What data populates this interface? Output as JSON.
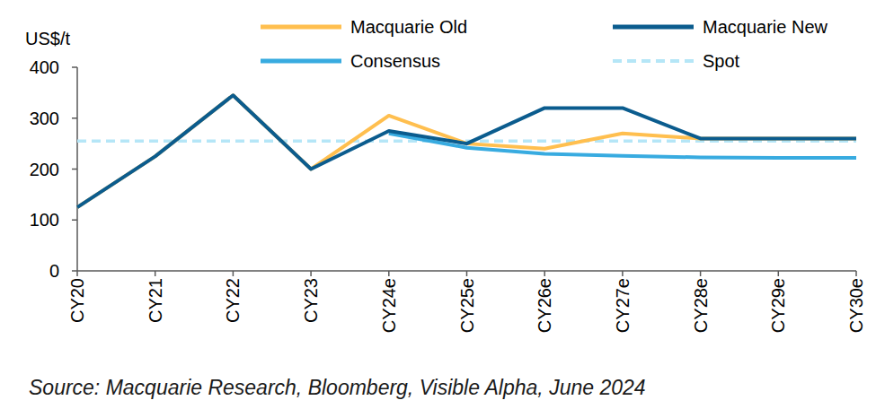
{
  "chart_data": {
    "type": "line",
    "y_axis_label": "US$/t",
    "source": "Source: Macquarie Research, Bloomberg, Visible Alpha, June 2024",
    "categories": [
      "CY20",
      "CY21",
      "CY22",
      "CY23",
      "CY24e",
      "CY25e",
      "CY26e",
      "CY27e",
      "CY28e",
      "CY29e",
      "CY30e"
    ],
    "series": [
      {
        "name": "Macquarie Old",
        "color": "#ffbf4f",
        "line_style": "solid",
        "values": [
          125,
          225,
          345,
          200,
          305,
          250,
          240,
          270,
          260,
          260,
          260
        ]
      },
      {
        "name": "Macquarie New",
        "color": "#0b5c8e",
        "line_style": "solid",
        "values": [
          125,
          225,
          345,
          200,
          275,
          250,
          320,
          320,
          260,
          260,
          260
        ]
      },
      {
        "name": "Consensus",
        "color": "#38abe0",
        "line_style": "solid",
        "values": [
          null,
          null,
          null,
          null,
          270,
          242,
          230,
          226,
          223,
          222,
          222
        ]
      },
      {
        "name": "Spot",
        "color": "#b5e6f7",
        "line_style": "dashed",
        "values": [
          255,
          255,
          255,
          255,
          255,
          255,
          255,
          255,
          255,
          255,
          255
        ]
      }
    ],
    "ylim": [
      0,
      400
    ],
    "yticks": [
      0,
      100,
      200,
      300,
      400
    ],
    "grid": false,
    "legend": "top"
  }
}
